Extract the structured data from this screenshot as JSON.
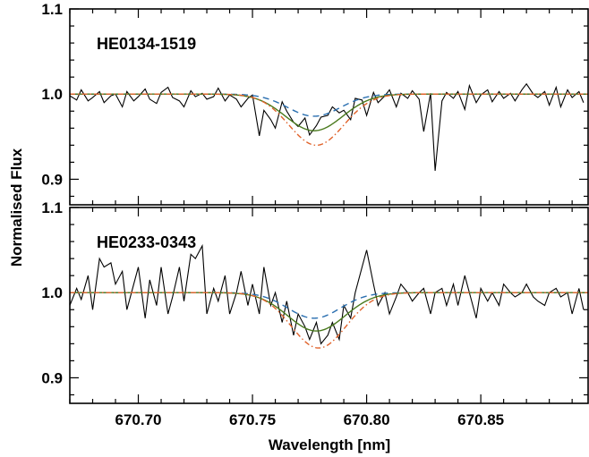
{
  "chart_data": [
    {
      "type": "line",
      "label": "HE0134-1519",
      "xlabel": "Wavelength [nm]",
      "ylabel": "Normalised Flux",
      "xlim": [
        670.67,
        670.897
      ],
      "ylim": [
        0.87,
        1.1
      ],
      "xticks": [
        670.7,
        670.75,
        670.8,
        670.85
      ],
      "xtick_labels": [
        "670.70",
        "670.75",
        "670.80",
        "670.85"
      ],
      "yticks": [
        0.9,
        1.0,
        1.1
      ],
      "ytick_labels": [
        "0.9",
        "1.0",
        "1.1"
      ],
      "series": [
        {
          "style": "solid",
          "color": "#000000",
          "x": [
            670.67,
            670.673,
            670.675,
            670.678,
            670.68,
            670.683,
            670.685,
            670.688,
            670.69,
            670.693,
            670.695,
            670.698,
            670.7,
            670.703,
            670.705,
            670.708,
            670.71,
            670.713,
            670.715,
            670.718,
            670.72,
            670.723,
            670.725,
            670.728,
            670.73,
            670.733,
            670.735,
            670.738,
            670.74,
            670.743,
            670.745,
            670.748,
            670.75,
            670.753,
            670.755,
            670.758,
            670.76,
            670.763,
            670.765,
            670.768,
            670.77,
            670.773,
            670.775,
            670.778,
            670.78,
            670.783,
            670.785,
            670.788,
            670.79,
            670.793,
            670.795,
            670.798,
            670.8,
            670.803,
            670.805,
            670.808,
            670.81,
            670.813,
            670.815,
            670.818,
            670.82,
            670.823,
            670.825,
            670.828,
            670.83,
            670.833,
            670.835,
            670.838,
            670.84,
            670.843,
            670.845,
            670.848,
            670.85,
            670.853,
            670.855,
            670.858,
            670.86,
            670.863,
            670.865,
            670.868,
            670.87,
            670.873,
            670.875,
            670.878,
            670.88,
            670.883,
            670.885,
            670.888,
            670.89,
            670.893,
            670.895
          ],
          "y": [
            0.998,
            0.993,
            1.005,
            0.992,
            0.996,
            1.003,
            0.99,
            0.998,
            1.0,
            0.985,
            1.003,
            0.992,
            0.997,
            1.006,
            0.994,
            0.989,
            1.002,
            1.008,
            0.996,
            0.992,
            0.985,
            1.004,
            0.997,
            1.001,
            0.994,
            0.997,
            1.007,
            0.992,
            0.999,
            0.994,
            0.985,
            0.995,
            0.999,
            0.951,
            0.981,
            0.97,
            0.96,
            0.991,
            0.98,
            0.967,
            0.962,
            0.972,
            0.952,
            0.963,
            0.973,
            0.975,
            0.985,
            0.978,
            0.981,
            0.97,
            0.995,
            0.993,
            0.975,
            1.002,
            0.99,
            0.998,
            1.005,
            0.985,
            1.001,
            0.995,
            1.004,
            0.994,
            0.956,
            1.001,
            0.91,
            0.992,
            1.002,
            0.995,
            1.003,
            0.982,
            1.01,
            0.99,
            0.999,
            1.005,
            0.991,
            1.003,
            0.995,
            1.001,
            0.992,
            1.005,
            1.012,
            1.0,
            0.996,
            1.003,
            0.987,
            1.008,
            0.985,
            1.005,
            0.996,
            1.003,
            0.99
          ]
        },
        {
          "style": "dashed",
          "color": "#2a6fb0",
          "center": 670.777,
          "sigma": 0.0115,
          "depth": 0.026
        },
        {
          "style": "solid",
          "color": "#4a7a1e",
          "center": 670.777,
          "sigma": 0.0125,
          "depth": 0.043
        },
        {
          "style": "dash-dot",
          "color": "#e0622a",
          "center": 670.778,
          "sigma": 0.012,
          "depth": 0.06
        }
      ]
    },
    {
      "type": "line",
      "label": "HE0233-0343",
      "xlabel": "Wavelength [nm]",
      "ylabel": "Normalised Flux",
      "xlim": [
        670.67,
        670.897
      ],
      "ylim": [
        0.87,
        1.1
      ],
      "xticks": [
        670.7,
        670.75,
        670.8,
        670.85
      ],
      "xtick_labels": [
        "670.70",
        "670.75",
        "670.80",
        "670.85"
      ],
      "yticks": [
        0.9,
        1.0,
        1.1
      ],
      "ytick_labels": [
        "0.9",
        "1.0",
        "1.1"
      ],
      "series": [
        {
          "style": "solid",
          "color": "#000000",
          "x": [
            670.67,
            670.673,
            670.675,
            670.678,
            670.68,
            670.683,
            670.685,
            670.688,
            670.69,
            670.693,
            670.695,
            670.698,
            670.7,
            670.703,
            670.705,
            670.708,
            670.71,
            670.713,
            670.715,
            670.718,
            670.72,
            670.723,
            670.725,
            670.728,
            670.73,
            670.733,
            670.735,
            670.738,
            670.74,
            670.743,
            670.745,
            670.748,
            670.75,
            670.753,
            670.755,
            670.758,
            670.76,
            670.763,
            670.765,
            670.768,
            670.77,
            670.773,
            670.775,
            670.778,
            670.78,
            670.783,
            670.785,
            670.788,
            670.79,
            670.793,
            670.795,
            670.798,
            670.8,
            670.803,
            670.805,
            670.808,
            670.81,
            670.813,
            670.815,
            670.818,
            670.82,
            670.823,
            670.825,
            670.828,
            670.83,
            670.833,
            670.835,
            670.838,
            670.84,
            670.843,
            670.845,
            670.848,
            670.85,
            670.853,
            670.855,
            670.858,
            670.86,
            670.863,
            670.865,
            670.868,
            670.87,
            670.873,
            670.875,
            670.878,
            670.88,
            670.883,
            670.885,
            670.888,
            670.89,
            670.893,
            670.895
          ],
          "y": [
            0.985,
            1.005,
            0.992,
            1.02,
            0.98,
            1.04,
            1.03,
            1.035,
            1.01,
            1.025,
            0.98,
            1.01,
            1.03,
            0.97,
            1.015,
            0.985,
            1.03,
            0.975,
            0.995,
            1.03,
            0.99,
            1.045,
            1.04,
            1.055,
            0.975,
            1.005,
            0.99,
            1.02,
            0.975,
            1.0,
            1.025,
            0.985,
            1.01,
            0.975,
            1.03,
            0.985,
            1.0,
            0.965,
            0.99,
            0.95,
            0.975,
            0.96,
            0.945,
            0.965,
            0.94,
            0.95,
            0.965,
            0.945,
            0.985,
            0.97,
            1.0,
            1.03,
            1.05,
            1.01,
            0.985,
            1.0,
            0.975,
            0.995,
            1.01,
            1.0,
            0.99,
            1.0,
            1.005,
            0.975,
            1.0,
            1.005,
            0.985,
            1.01,
            0.985,
            1.02,
            1.0,
            0.97,
            1.005,
            0.99,
            1.0,
            0.985,
            1.01,
            1.0,
            0.995,
            1.0,
            1.01,
            0.995,
            0.99,
            0.985,
            1.0,
            1.005,
            0.995,
            1.0,
            0.975,
            1.005,
            0.98
          ]
        },
        {
          "style": "dashed",
          "color": "#2a6fb0",
          "center": 670.777,
          "sigma": 0.0115,
          "depth": 0.03
        },
        {
          "style": "solid",
          "color": "#4a7a1e",
          "center": 670.778,
          "sigma": 0.0125,
          "depth": 0.045
        },
        {
          "style": "dash-dot",
          "color": "#e0622a",
          "center": 670.779,
          "sigma": 0.012,
          "depth": 0.065
        }
      ]
    }
  ]
}
